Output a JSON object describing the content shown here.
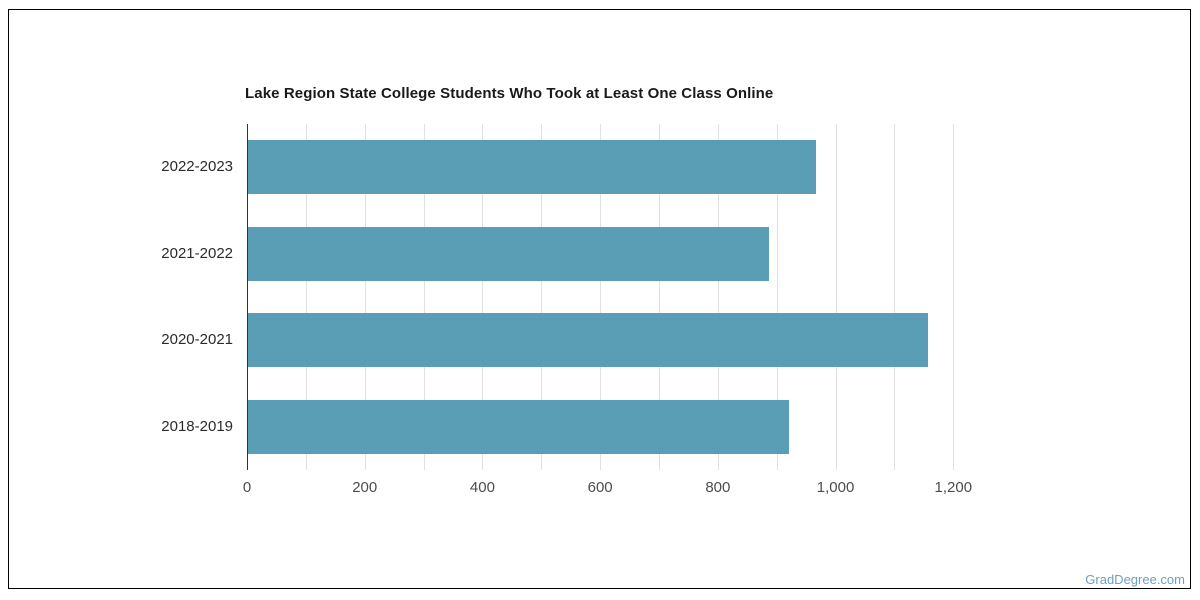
{
  "page": {
    "watermark": "GradDegree.com"
  },
  "chart_data": {
    "type": "bar",
    "orientation": "horizontal",
    "title": "Lake Region State College Students Who Took at Least One Class Online",
    "categories": [
      "2022-2023",
      "2021-2022",
      "2020-2021",
      "2018-2019"
    ],
    "values": [
      965,
      885,
      1155,
      920
    ],
    "xlabel": "",
    "ylabel": "",
    "xlim": [
      0,
      1200
    ],
    "x_tick_values": [
      0,
      200,
      400,
      600,
      800,
      1000,
      1200
    ],
    "x_tick_labels": [
      "0",
      "200",
      "400",
      "600",
      "800",
      "1,000",
      "1,200"
    ],
    "gridline_interval": 100,
    "grid": true,
    "legend": false,
    "colors": {
      "bar": "#5a9eb5",
      "gridline": "#e0e0e0",
      "axis_line": "#333333",
      "category_label": "#2b2b2b",
      "tick_label": "#4d4d4d",
      "title": "#1a1a1a",
      "frame_border": "#000000",
      "watermark": "#6ba2be"
    }
  }
}
